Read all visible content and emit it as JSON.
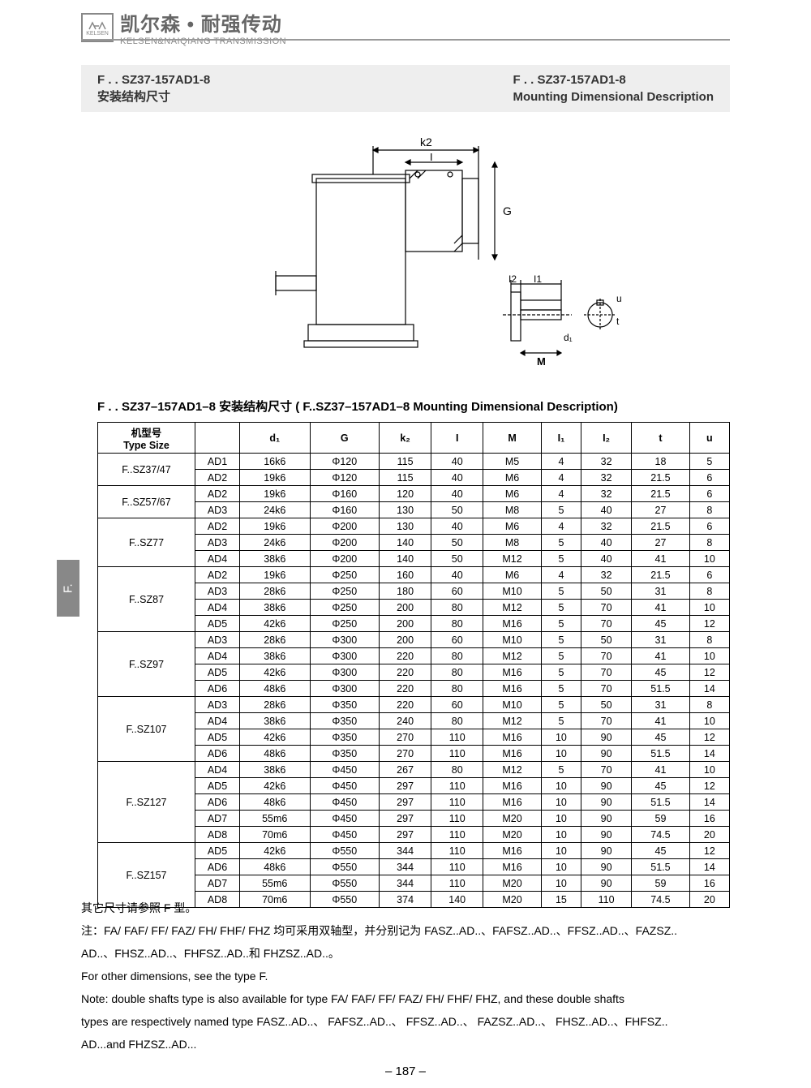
{
  "brand": {
    "logo_label": "KELSEN",
    "cn": "凯尔森 • 耐强传动",
    "en": "KELSEN&NAIQIANG TRANSMISSION"
  },
  "title": {
    "left_line1": "F . . SZ37-157AD1-8",
    "left_line2": "安装结构尺寸",
    "right_line1": "F . . SZ37-157AD1-8",
    "right_line2": "Mounting Dimensional Description"
  },
  "diagram_labels": {
    "k2": "k2",
    "I": "I",
    "G": "G",
    "I2": "I2",
    "I1": "I1",
    "u": "u",
    "t": "t",
    "d1": "d₁",
    "M": "M"
  },
  "table_title": "F . . SZ37–157AD1–8 安装结构尺寸   (  F..SZ37–157AD1–8  Mounting  Dimensional  Description)",
  "side_tab": "F.",
  "table": {
    "header_type_cn": "机型号",
    "header_type_en": "Type Size",
    "columns": [
      "",
      "d₁",
      "G",
      "k₂",
      "I",
      "M",
      "I₁",
      "I₂",
      "t",
      "u"
    ],
    "groups": [
      {
        "type": "F..SZ37/47",
        "rows": [
          [
            "AD1",
            "16k6",
            "Φ120",
            "115",
            "40",
            "M5",
            "4",
            "32",
            "18",
            "5"
          ],
          [
            "AD2",
            "19k6",
            "Φ120",
            "115",
            "40",
            "M6",
            "4",
            "32",
            "21.5",
            "6"
          ]
        ]
      },
      {
        "type": "F..SZ57/67",
        "rows": [
          [
            "AD2",
            "19k6",
            "Φ160",
            "120",
            "40",
            "M6",
            "4",
            "32",
            "21.5",
            "6"
          ],
          [
            "AD3",
            "24k6",
            "Φ160",
            "130",
            "50",
            "M8",
            "5",
            "40",
            "27",
            "8"
          ]
        ]
      },
      {
        "type": "F..SZ77",
        "rows": [
          [
            "AD2",
            "19k6",
            "Φ200",
            "130",
            "40",
            "M6",
            "4",
            "32",
            "21.5",
            "6"
          ],
          [
            "AD3",
            "24k6",
            "Φ200",
            "140",
            "50",
            "M8",
            "5",
            "40",
            "27",
            "8"
          ],
          [
            "AD4",
            "38k6",
            "Φ200",
            "140",
            "50",
            "M12",
            "5",
            "40",
            "41",
            "10"
          ]
        ]
      },
      {
        "type": "F..SZ87",
        "rows": [
          [
            "AD2",
            "19k6",
            "Φ250",
            "160",
            "40",
            "M6",
            "4",
            "32",
            "21.5",
            "6"
          ],
          [
            "AD3",
            "28k6",
            "Φ250",
            "180",
            "60",
            "M10",
            "5",
            "50",
            "31",
            "8"
          ],
          [
            "AD4",
            "38k6",
            "Φ250",
            "200",
            "80",
            "M12",
            "5",
            "70",
            "41",
            "10"
          ],
          [
            "AD5",
            "42k6",
            "Φ250",
            "200",
            "80",
            "M16",
            "5",
            "70",
            "45",
            "12"
          ]
        ]
      },
      {
        "type": "F..SZ97",
        "rows": [
          [
            "AD3",
            "28k6",
            "Φ300",
            "200",
            "60",
            "M10",
            "5",
            "50",
            "31",
            "8"
          ],
          [
            "AD4",
            "38k6",
            "Φ300",
            "220",
            "80",
            "M12",
            "5",
            "70",
            "41",
            "10"
          ],
          [
            "AD5",
            "42k6",
            "Φ300",
            "220",
            "80",
            "M16",
            "5",
            "70",
            "45",
            "12"
          ],
          [
            "AD6",
            "48k6",
            "Φ300",
            "220",
            "80",
            "M16",
            "5",
            "70",
            "51.5",
            "14"
          ]
        ]
      },
      {
        "type": "F..SZ107",
        "rows": [
          [
            "AD3",
            "28k6",
            "Φ350",
            "220",
            "60",
            "M10",
            "5",
            "50",
            "31",
            "8"
          ],
          [
            "AD4",
            "38k6",
            "Φ350",
            "240",
            "80",
            "M12",
            "5",
            "70",
            "41",
            "10"
          ],
          [
            "AD5",
            "42k6",
            "Φ350",
            "270",
            "110",
            "M16",
            "10",
            "90",
            "45",
            "12"
          ],
          [
            "AD6",
            "48k6",
            "Φ350",
            "270",
            "110",
            "M16",
            "10",
            "90",
            "51.5",
            "14"
          ]
        ]
      },
      {
        "type": "F..SZ127",
        "rows": [
          [
            "AD4",
            "38k6",
            "Φ450",
            "267",
            "80",
            "M12",
            "5",
            "70",
            "41",
            "10"
          ],
          [
            "AD5",
            "42k6",
            "Φ450",
            "297",
            "110",
            "M16",
            "10",
            "90",
            "45",
            "12"
          ],
          [
            "AD6",
            "48k6",
            "Φ450",
            "297",
            "110",
            "M16",
            "10",
            "90",
            "51.5",
            "14"
          ],
          [
            "AD7",
            "55m6",
            "Φ450",
            "297",
            "110",
            "M20",
            "10",
            "90",
            "59",
            "16"
          ],
          [
            "AD8",
            "70m6",
            "Φ450",
            "297",
            "110",
            "M20",
            "10",
            "90",
            "74.5",
            "20"
          ]
        ]
      },
      {
        "type": "F..SZ157",
        "rows": [
          [
            "AD5",
            "42k6",
            "Φ550",
            "344",
            "110",
            "M16",
            "10",
            "90",
            "45",
            "12"
          ],
          [
            "AD6",
            "48k6",
            "Φ550",
            "344",
            "110",
            "M16",
            "10",
            "90",
            "51.5",
            "14"
          ],
          [
            "AD7",
            "55m6",
            "Φ550",
            "344",
            "110",
            "M20",
            "10",
            "90",
            "59",
            "16"
          ],
          [
            "AD8",
            "70m6",
            "Φ550",
            "374",
            "140",
            "M20",
            "15",
            "110",
            "74.5",
            "20"
          ]
        ]
      }
    ]
  },
  "notes": {
    "line1": "其它尺寸请参照   F 型。",
    "line2": "注：FA/ FAF/ FF/ FAZ/ FH/ FHF/ FHZ 均可采用双轴型，并分别记为   FASZ..AD..、FAFSZ..AD..、FFSZ..AD..、FAZSZ..",
    "line3": "AD..、FHSZ..AD..、FHFSZ..AD..和   FHZSZ..AD..。",
    "line4": "For  other  dimensions,  see  the  type    F.",
    "line5": "Note:  double  shafts  type  is  also  available  for  type    FA/  FAF/  FF/  FAZ/  FH/  FHF/  FHZ,  and  these  double  shafts",
    "line6": "types   are   respectively   named   type     FASZ..AD..、 FAFSZ..AD..、 FFSZ..AD..、 FAZSZ..AD..、 FHSZ..AD..、FHFSZ..",
    "line7": "AD...and    FHZSZ..AD..."
  },
  "page_number": "– 187 –"
}
